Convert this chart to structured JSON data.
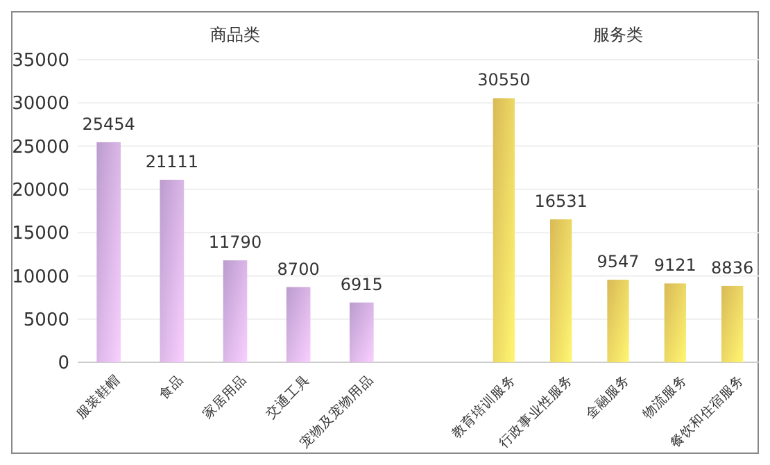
{
  "chart_data": [
    {
      "type": "bar",
      "title": "商品类",
      "categories": [
        "服装鞋帽",
        "食品",
        "家居用品",
        "交通工具",
        "宠物及宠物用品"
      ],
      "values": [
        25454,
        21111,
        11790,
        8700,
        6915
      ],
      "color": "#d8b4ee",
      "ylim": [
        0,
        35000
      ],
      "yticks": [
        0,
        5000,
        10000,
        15000,
        20000,
        25000,
        30000,
        35000
      ],
      "grid": "y",
      "data_labels": true
    },
    {
      "type": "bar",
      "title": "服务类",
      "categories": [
        "教育培训服务",
        "行政事业性服务",
        "金融服务",
        "物流服务",
        "餐饮和住宿服务"
      ],
      "values": [
        30550,
        16531,
        9547,
        9121,
        8836
      ],
      "color": "#fad563",
      "ylim": [
        0,
        35000
      ],
      "yticks": [
        0,
        5000,
        10000,
        15000,
        20000,
        25000,
        30000,
        35000
      ],
      "grid": "y",
      "data_labels": true,
      "tick_labels": "x"
    }
  ]
}
